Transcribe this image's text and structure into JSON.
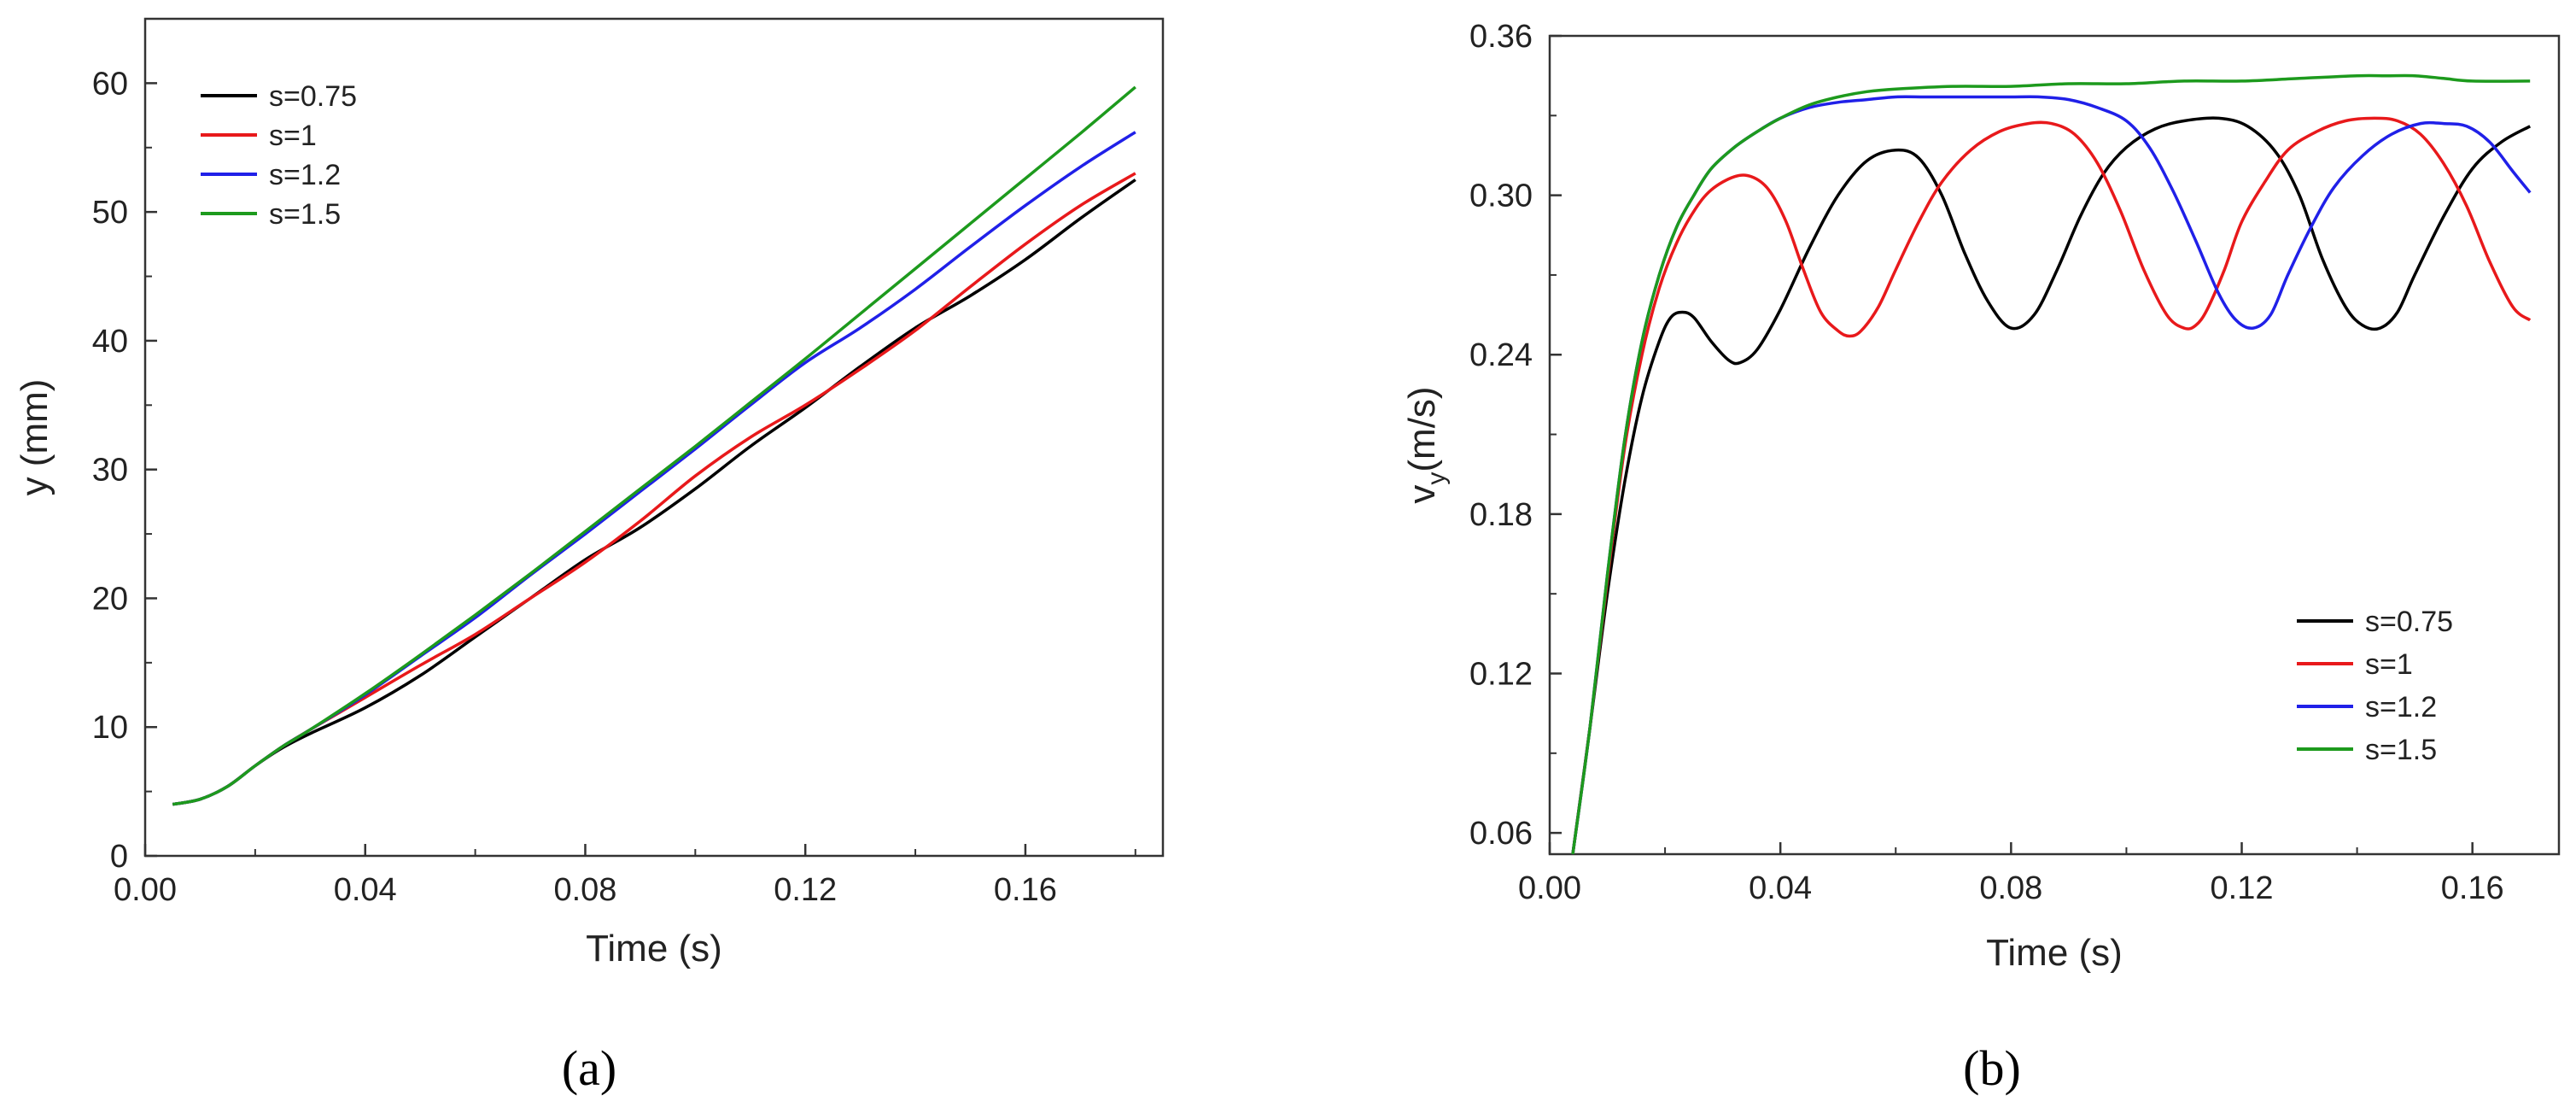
{
  "chart_data": [
    {
      "type": "line",
      "panel_label": "(a)",
      "xlabel": "Time (s)",
      "ylabel": "y (mm)",
      "xlim": [
        0.0,
        0.185
      ],
      "ylim": [
        0,
        65
      ],
      "xticks": [
        0.0,
        0.04,
        0.08,
        0.12,
        0.16
      ],
      "xtick_labels": [
        "0.00",
        "0.04",
        "0.08",
        "0.12",
        "0.16"
      ],
      "yticks": [
        0,
        10,
        20,
        30,
        40,
        50,
        60
      ],
      "ytick_labels": [
        "0",
        "10",
        "20",
        "30",
        "40",
        "50",
        "60"
      ],
      "grid": false,
      "legend_position": "top-left",
      "series": [
        {
          "name": "s=0.75",
          "color": "#000000",
          "x": [
            0.005,
            0.01,
            0.015,
            0.02,
            0.025,
            0.03,
            0.04,
            0.05,
            0.06,
            0.07,
            0.08,
            0.09,
            0.1,
            0.11,
            0.12,
            0.13,
            0.14,
            0.15,
            0.16,
            0.17,
            0.18
          ],
          "y": [
            4.0,
            4.4,
            5.4,
            7.0,
            8.4,
            9.5,
            11.5,
            14.0,
            17.0,
            20.0,
            23.0,
            25.5,
            28.5,
            31.8,
            34.8,
            38.0,
            41.0,
            43.5,
            46.3,
            49.5,
            52.5
          ]
        },
        {
          "name": "s=1",
          "color": "#e8191b",
          "x": [
            0.005,
            0.01,
            0.015,
            0.02,
            0.025,
            0.03,
            0.04,
            0.05,
            0.06,
            0.07,
            0.08,
            0.09,
            0.1,
            0.11,
            0.12,
            0.13,
            0.14,
            0.15,
            0.16,
            0.17,
            0.18
          ],
          "y": [
            4.0,
            4.4,
            5.4,
            7.0,
            8.5,
            9.8,
            12.3,
            14.8,
            17.2,
            20.0,
            22.8,
            26.0,
            29.5,
            32.5,
            35.0,
            37.8,
            40.8,
            44.2,
            47.5,
            50.5,
            53.0
          ]
        },
        {
          "name": "s=1.2",
          "color": "#2020e8",
          "x": [
            0.005,
            0.01,
            0.015,
            0.02,
            0.025,
            0.03,
            0.04,
            0.05,
            0.06,
            0.07,
            0.08,
            0.09,
            0.1,
            0.11,
            0.12,
            0.13,
            0.14,
            0.15,
            0.16,
            0.17,
            0.18
          ],
          "y": [
            4.0,
            4.4,
            5.4,
            7.0,
            8.5,
            9.8,
            12.5,
            15.5,
            18.5,
            21.8,
            25.0,
            28.3,
            31.6,
            35.0,
            38.3,
            41.0,
            44.0,
            47.3,
            50.5,
            53.5,
            56.2
          ]
        },
        {
          "name": "s=1.5",
          "color": "#1d9a1d",
          "x": [
            0.005,
            0.01,
            0.015,
            0.02,
            0.025,
            0.03,
            0.04,
            0.05,
            0.06,
            0.07,
            0.08,
            0.09,
            0.1,
            0.11,
            0.12,
            0.13,
            0.14,
            0.15,
            0.16,
            0.17,
            0.18
          ],
          "y": [
            4.0,
            4.4,
            5.4,
            7.0,
            8.5,
            9.8,
            12.6,
            15.6,
            18.7,
            21.9,
            25.2,
            28.5,
            31.8,
            35.2,
            38.6,
            42.1,
            45.6,
            49.1,
            52.6,
            56.1,
            59.7
          ]
        }
      ]
    },
    {
      "type": "line",
      "panel_label": "(b)",
      "xlabel": "Time (s)",
      "ylabel": "vy(m/s)",
      "ylabel_main": "v",
      "ylabel_sub": "y",
      "ylabel_units": "(m/s)",
      "xlim": [
        0.0,
        0.175
      ],
      "ylim": [
        0.052,
        0.36
      ],
      "xticks": [
        0.0,
        0.04,
        0.08,
        0.12,
        0.16
      ],
      "xtick_labels": [
        "0.00",
        "0.04",
        "0.08",
        "0.12",
        "0.16"
      ],
      "yticks": [
        0.06,
        0.12,
        0.18,
        0.24,
        0.3,
        0.36
      ],
      "ytick_labels": [
        "0.06",
        "0.12",
        "0.18",
        "0.24",
        "0.30",
        "0.36"
      ],
      "grid": false,
      "legend_position": "bottom-right",
      "series": [
        {
          "name": "s=0.75",
          "color": "#000000",
          "x": [
            0.004,
            0.007,
            0.01,
            0.013,
            0.016,
            0.019,
            0.021,
            0.023,
            0.025,
            0.028,
            0.031,
            0.033,
            0.036,
            0.04,
            0.045,
            0.05,
            0.055,
            0.06,
            0.064,
            0.068,
            0.072,
            0.076,
            0.08,
            0.084,
            0.088,
            0.092,
            0.096,
            0.1,
            0.105,
            0.11,
            0.116,
            0.121,
            0.126,
            0.13,
            0.134,
            0.138,
            0.141,
            0.144,
            0.147,
            0.15,
            0.155,
            0.16,
            0.165,
            0.17
          ],
          "y": [
            0.052,
            0.1,
            0.15,
            0.192,
            0.224,
            0.245,
            0.254,
            0.256,
            0.254,
            0.245,
            0.238,
            0.237,
            0.242,
            0.257,
            0.28,
            0.3,
            0.313,
            0.317,
            0.314,
            0.3,
            0.278,
            0.26,
            0.25,
            0.255,
            0.272,
            0.292,
            0.308,
            0.318,
            0.325,
            0.328,
            0.329,
            0.326,
            0.316,
            0.3,
            0.276,
            0.258,
            0.251,
            0.25,
            0.256,
            0.27,
            0.292,
            0.31,
            0.32,
            0.326
          ]
        },
        {
          "name": "s=1",
          "color": "#e8191b",
          "x": [
            0.004,
            0.007,
            0.01,
            0.013,
            0.016,
            0.019,
            0.022,
            0.025,
            0.028,
            0.032,
            0.035,
            0.038,
            0.041,
            0.044,
            0.047,
            0.05,
            0.052,
            0.054,
            0.057,
            0.06,
            0.064,
            0.068,
            0.073,
            0.078,
            0.083,
            0.087,
            0.091,
            0.095,
            0.099,
            0.103,
            0.107,
            0.11,
            0.112,
            0.114,
            0.117,
            0.12,
            0.124,
            0.128,
            0.133,
            0.138,
            0.143,
            0.147,
            0.151,
            0.155,
            0.159,
            0.163,
            0.167,
            0.17
          ],
          "y": [
            0.052,
            0.1,
            0.155,
            0.205,
            0.24,
            0.265,
            0.282,
            0.294,
            0.302,
            0.307,
            0.307,
            0.302,
            0.29,
            0.272,
            0.256,
            0.249,
            0.247,
            0.249,
            0.258,
            0.272,
            0.29,
            0.305,
            0.317,
            0.324,
            0.327,
            0.327,
            0.323,
            0.312,
            0.294,
            0.272,
            0.255,
            0.25,
            0.251,
            0.257,
            0.272,
            0.29,
            0.305,
            0.317,
            0.324,
            0.328,
            0.329,
            0.328,
            0.323,
            0.312,
            0.296,
            0.275,
            0.258,
            0.253
          ]
        },
        {
          "name": "s=1.2",
          "color": "#2020e8",
          "x": [
            0.004,
            0.007,
            0.01,
            0.013,
            0.016,
            0.019,
            0.022,
            0.025,
            0.028,
            0.032,
            0.036,
            0.04,
            0.045,
            0.05,
            0.055,
            0.06,
            0.065,
            0.07,
            0.075,
            0.08,
            0.085,
            0.09,
            0.095,
            0.1,
            0.104,
            0.108,
            0.112,
            0.116,
            0.119,
            0.122,
            0.125,
            0.128,
            0.132,
            0.136,
            0.141,
            0.146,
            0.151,
            0.155,
            0.159,
            0.163,
            0.167,
            0.17
          ],
          "y": [
            0.052,
            0.1,
            0.157,
            0.208,
            0.245,
            0.27,
            0.288,
            0.3,
            0.31,
            0.318,
            0.324,
            0.329,
            0.333,
            0.335,
            0.336,
            0.337,
            0.337,
            0.337,
            0.337,
            0.337,
            0.337,
            0.336,
            0.333,
            0.328,
            0.318,
            0.302,
            0.283,
            0.263,
            0.253,
            0.25,
            0.255,
            0.27,
            0.288,
            0.303,
            0.315,
            0.323,
            0.327,
            0.327,
            0.326,
            0.32,
            0.309,
            0.301
          ]
        },
        {
          "name": "s=1.5",
          "color": "#1d9a1d",
          "x": [
            0.004,
            0.007,
            0.01,
            0.013,
            0.016,
            0.019,
            0.022,
            0.025,
            0.028,
            0.032,
            0.036,
            0.04,
            0.045,
            0.05,
            0.055,
            0.06,
            0.07,
            0.08,
            0.09,
            0.1,
            0.11,
            0.12,
            0.13,
            0.14,
            0.145,
            0.15,
            0.155,
            0.16,
            0.17
          ],
          "y": [
            0.052,
            0.1,
            0.157,
            0.208,
            0.245,
            0.27,
            0.288,
            0.3,
            0.31,
            0.318,
            0.324,
            0.329,
            0.334,
            0.337,
            0.339,
            0.34,
            0.341,
            0.341,
            0.342,
            0.342,
            0.343,
            0.343,
            0.344,
            0.345,
            0.345,
            0.345,
            0.344,
            0.343,
            0.343
          ]
        }
      ]
    }
  ]
}
